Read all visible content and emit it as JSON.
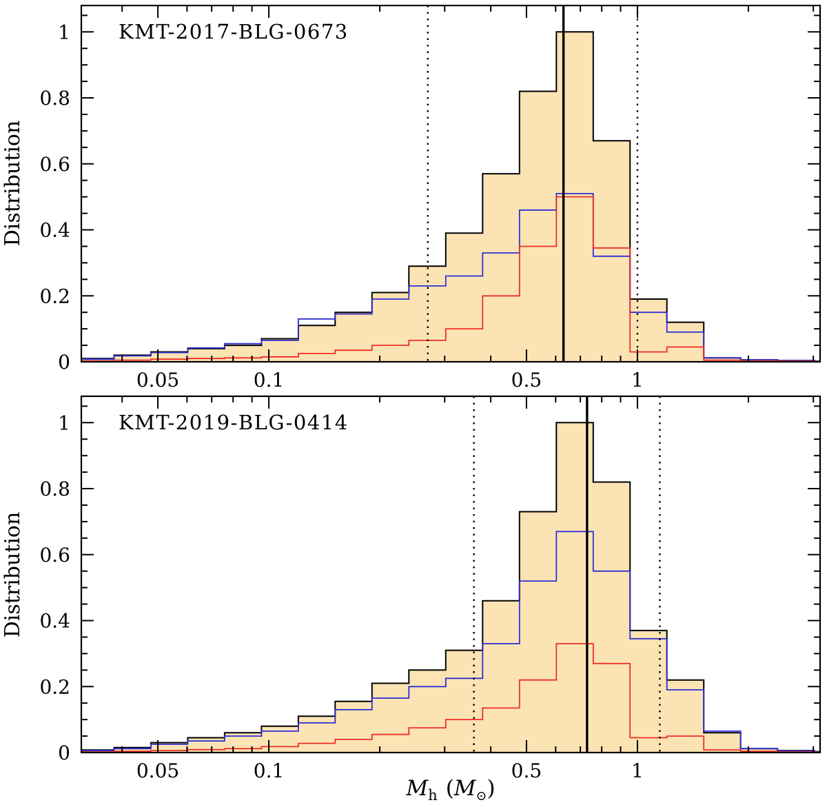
{
  "figure": {
    "background": "#ffffff",
    "axis_color": "#000000",
    "xlabel": {
      "m": "M",
      "sub": "h",
      "open": "(",
      "m2": "M",
      "sun": "⊙",
      "close": ")"
    }
  },
  "chart_data": [
    {
      "type": "bar",
      "subtype": "histogram-step-log-x",
      "title": "KMT-2017-BLG-0673",
      "ylabel": "Distribution",
      "x_scale": "log",
      "xlim": [
        0.031,
        3.13
      ],
      "ylim": [
        0,
        1.08
      ],
      "x_ticks_major": [
        0.05,
        0.1,
        0.5,
        1
      ],
      "x_tick_labels": [
        "0.05",
        "0.1",
        "0.5",
        "1"
      ],
      "x_ticks_minor": [
        0.04,
        0.06,
        0.07,
        0.08,
        0.09,
        0.2,
        0.3,
        0.4,
        0.6,
        0.7,
        0.8,
        0.9,
        2,
        3
      ],
      "y_ticks_major": [
        0,
        0.2,
        0.4,
        0.6,
        0.8,
        1
      ],
      "y_tick_labels": [
        "0",
        "0.2",
        "0.4",
        "0.6",
        "0.8",
        "1"
      ],
      "y_minor_step": 0.05,
      "bins": {
        "log10_start": -1.52,
        "log10_step": 0.1,
        "count": 21
      },
      "series": [
        {
          "name": "total-distribution",
          "style": "filled",
          "stroke": "#000000",
          "fill": "#fce3b4",
          "values": [
            0.01,
            0.02,
            0.03,
            0.04,
            0.05,
            0.07,
            0.11,
            0.15,
            0.21,
            0.29,
            0.39,
            0.57,
            0.82,
            1.0,
            0.67,
            0.19,
            0.12,
            0.012,
            0.006,
            0.004,
            0.002
          ]
        },
        {
          "name": "blue-histogram",
          "style": "line",
          "stroke": "#2f2fd3",
          "values": [
            0.008,
            0.018,
            0.028,
            0.042,
            0.055,
            0.065,
            0.13,
            0.145,
            0.19,
            0.23,
            0.26,
            0.33,
            0.46,
            0.51,
            0.32,
            0.15,
            0.09,
            0.012,
            0.006,
            0.004,
            0.002
          ]
        },
        {
          "name": "red-histogram",
          "style": "line",
          "stroke": "#ee2e24",
          "values": [
            0.003,
            0.005,
            0.008,
            0.01,
            0.012,
            0.015,
            0.025,
            0.035,
            0.05,
            0.065,
            0.1,
            0.2,
            0.35,
            0.5,
            0.345,
            0.03,
            0.045,
            0.005,
            0.003,
            0.002,
            0.001
          ]
        }
      ],
      "vlines": {
        "median": 0.63,
        "lower": 0.27,
        "upper": 1.0,
        "median_style": "solid",
        "range_style": "dotted",
        "color": "#000000"
      }
    },
    {
      "type": "bar",
      "subtype": "histogram-step-log-x",
      "title": "KMT-2019-BLG-0414",
      "ylabel": "Distribution",
      "x_scale": "log",
      "xlim": [
        0.031,
        3.13
      ],
      "ylim": [
        0,
        1.08
      ],
      "x_ticks_major": [
        0.05,
        0.1,
        0.5,
        1
      ],
      "x_tick_labels": [
        "0.05",
        "0.1",
        "0.5",
        "1"
      ],
      "x_ticks_minor": [
        0.04,
        0.06,
        0.07,
        0.08,
        0.09,
        0.2,
        0.3,
        0.4,
        0.6,
        0.7,
        0.8,
        0.9,
        2,
        3
      ],
      "y_ticks_major": [
        0,
        0.2,
        0.4,
        0.6,
        0.8,
        1
      ],
      "y_tick_labels": [
        "0",
        "0.2",
        "0.4",
        "0.6",
        "0.8",
        "1"
      ],
      "y_minor_step": 0.05,
      "bins": {
        "log10_start": -1.52,
        "log10_step": 0.1,
        "count": 21
      },
      "series": [
        {
          "name": "total-distribution",
          "style": "filled",
          "stroke": "#000000",
          "fill": "#fce3b4",
          "values": [
            0.008,
            0.015,
            0.03,
            0.045,
            0.06,
            0.08,
            0.11,
            0.155,
            0.21,
            0.25,
            0.31,
            0.46,
            0.73,
            1.0,
            0.82,
            0.37,
            0.22,
            0.06,
            0.012,
            0.006,
            0.003
          ]
        },
        {
          "name": "blue-histogram",
          "style": "line",
          "stroke": "#2f2fd3",
          "values": [
            0.006,
            0.012,
            0.025,
            0.035,
            0.05,
            0.065,
            0.09,
            0.13,
            0.165,
            0.2,
            0.225,
            0.33,
            0.52,
            0.67,
            0.55,
            0.345,
            0.19,
            0.065,
            0.012,
            0.005,
            0.002
          ]
        },
        {
          "name": "red-histogram",
          "style": "line",
          "stroke": "#ee2e24",
          "values": [
            0.002,
            0.004,
            0.006,
            0.009,
            0.012,
            0.018,
            0.028,
            0.04,
            0.055,
            0.075,
            0.1,
            0.135,
            0.22,
            0.33,
            0.27,
            0.045,
            0.05,
            0.008,
            0.004,
            0.002,
            0.001
          ]
        }
      ],
      "vlines": {
        "median": 0.73,
        "lower": 0.36,
        "upper": 1.15,
        "median_style": "solid",
        "range_style": "dotted",
        "color": "#000000"
      }
    }
  ]
}
